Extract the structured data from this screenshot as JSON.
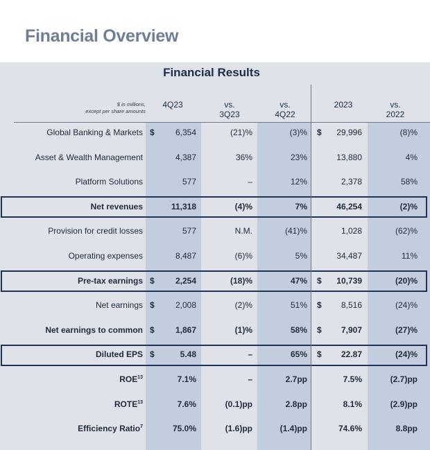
{
  "page_title": "Financial Overview",
  "table": {
    "title": "Financial Results",
    "units_note_line1": "$ in millions,",
    "units_note_line2": "except per share amounts",
    "columns": [
      {
        "line1": "",
        "line2": "4Q23"
      },
      {
        "line1": "vs.",
        "line2": "3Q23"
      },
      {
        "line1": "vs.",
        "line2": "4Q22"
      },
      {
        "line1": "",
        "line2": "2023"
      },
      {
        "line1": "vs.",
        "line2": "2022"
      }
    ],
    "rows": [
      {
        "label": "Global Banking & Markets",
        "sup": "",
        "bold": false,
        "highlight": false,
        "d1": "$",
        "q": "6,354",
        "vq": "(21)%",
        "vy": "(3)%",
        "d2": "$",
        "fy": "29,996",
        "vfy": "(8)%"
      },
      {
        "label": "Asset & Wealth Management",
        "sup": "",
        "bold": false,
        "highlight": false,
        "d1": "",
        "q": "4,387",
        "vq": "36%",
        "vy": "23%",
        "d2": "",
        "fy": "13,880",
        "vfy": "4%"
      },
      {
        "label": "Platform Solutions",
        "sup": "",
        "bold": false,
        "highlight": false,
        "d1": "",
        "q": "577",
        "vq": "–",
        "vy": "12%",
        "d2": "",
        "fy": "2,378",
        "vfy": "58%"
      },
      {
        "label": "Net revenues",
        "sup": "",
        "bold": true,
        "highlight": true,
        "d1": "",
        "q": "11,318",
        "vq": "(4)%",
        "vy": "7%",
        "d2": "",
        "fy": "46,254",
        "vfy": "(2)%"
      },
      {
        "label": "Provision for credit losses",
        "sup": "",
        "bold": false,
        "highlight": false,
        "d1": "",
        "q": "577",
        "vq": "N.M.",
        "vy": "(41)%",
        "d2": "",
        "fy": "1,028",
        "vfy": "(62)%"
      },
      {
        "label": "Operating expenses",
        "sup": "",
        "bold": false,
        "highlight": false,
        "d1": "",
        "q": "8,487",
        "vq": "(6)%",
        "vy": "5%",
        "d2": "",
        "fy": "34,487",
        "vfy": "11%"
      },
      {
        "label": "Pre-tax earnings",
        "sup": "",
        "bold": true,
        "highlight": true,
        "d1": "$",
        "q": "2,254",
        "vq": "(18)%",
        "vy": "47%",
        "d2": "$",
        "fy": "10,739",
        "vfy": "(20)%"
      },
      {
        "label": "Net earnings",
        "sup": "",
        "bold": false,
        "highlight": false,
        "d1": "$",
        "q": "2,008",
        "vq": "(2)%",
        "vy": "51%",
        "d2": "$",
        "fy": "8,516",
        "vfy": "(24)%"
      },
      {
        "label": "Net earnings to common",
        "sup": "",
        "bold": true,
        "highlight": false,
        "d1": "$",
        "q": "1,867",
        "vq": "(1)%",
        "vy": "58%",
        "d2": "$",
        "fy": "7,907",
        "vfy": "(27)%"
      },
      {
        "label": "Diluted EPS",
        "sup": "",
        "bold": true,
        "highlight": true,
        "d1": "$",
        "q": "5.48",
        "vq": "–",
        "vy": "65%",
        "d2": "$",
        "fy": "22.87",
        "vfy": "(24)%"
      },
      {
        "label": "ROE",
        "sup": "13",
        "bold": true,
        "highlight": false,
        "d1": "",
        "q": "7.1%",
        "vq": "–",
        "vy": "2.7pp",
        "d2": "",
        "fy": "7.5%",
        "vfy": "(2.7)pp"
      },
      {
        "label": "ROTE",
        "sup": "13",
        "bold": true,
        "highlight": false,
        "d1": "",
        "q": "7.6%",
        "vq": "(0.1)pp",
        "vy": "2.8pp",
        "d2": "",
        "fy": "8.1%",
        "vfy": "(2.9)pp"
      },
      {
        "label": "Efficiency Ratio",
        "sup": "7",
        "bold": true,
        "highlight": false,
        "d1": "",
        "q": "75.0%",
        "vq": "(1.6)pp",
        "vy": "(1.4)pp",
        "d2": "",
        "fy": "74.6%",
        "vfy": "8.8pp"
      }
    ]
  },
  "colors": {
    "title": "#6d7e96",
    "panel": "#dfe2e8",
    "band": "#c4cddd",
    "highlight_border": "#1f3357"
  }
}
